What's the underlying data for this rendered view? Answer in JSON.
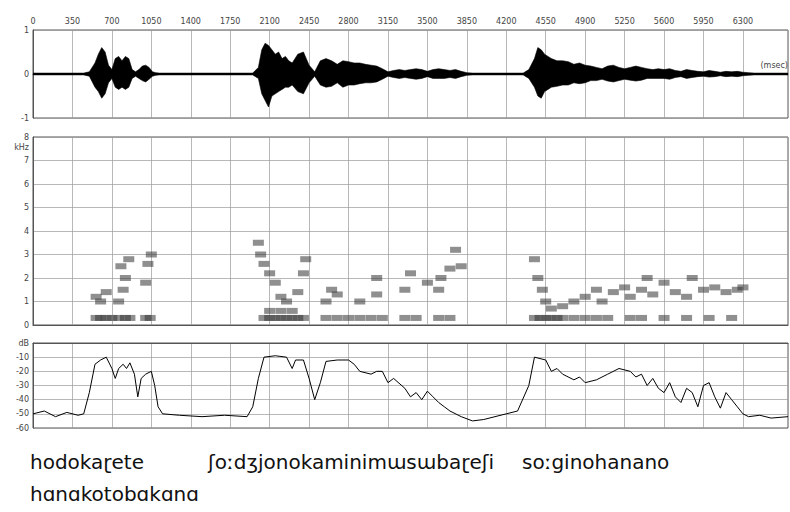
{
  "chart_data": [
    {
      "type": "waveform",
      "color": "#000000",
      "grid": true,
      "xlabel": "(msec)",
      "xlim": [
        0,
        6700
      ],
      "xticks": [
        0,
        350,
        700,
        1050,
        1400,
        1750,
        2100,
        2450,
        2800,
        3150,
        3500,
        3850,
        4200,
        4550,
        4900,
        5250,
        5600,
        5950,
        6300
      ],
      "ylim": [
        -1,
        1
      ],
      "yticks": [
        -1,
        0,
        1
      ],
      "x": [
        0,
        450,
        500,
        550,
        580,
        610,
        640,
        670,
        700,
        730,
        760,
        790,
        820,
        850,
        880,
        910,
        940,
        970,
        1000,
        1030,
        1060,
        1090,
        1120,
        1150,
        1200,
        1950,
        2000,
        2030,
        2060,
        2090,
        2120,
        2150,
        2180,
        2210,
        2240,
        2270,
        2300,
        2350,
        2400,
        2450,
        2500,
        2550,
        2600,
        2650,
        2700,
        2750,
        2800,
        2850,
        2900,
        2950,
        3000,
        3050,
        3100,
        3150,
        3200,
        3250,
        3300,
        3350,
        3400,
        3450,
        3500,
        3550,
        3600,
        3650,
        3700,
        3750,
        3800,
        3850,
        3900,
        3950,
        4350,
        4400,
        4450,
        4480,
        4510,
        4540,
        4570,
        4600,
        4650,
        4700,
        4750,
        4800,
        4850,
        4900,
        4950,
        5000,
        5050,
        5100,
        5150,
        5200,
        5250,
        5300,
        5350,
        5400,
        5450,
        5500,
        5550,
        5600,
        5650,
        5700,
        5750,
        5800,
        5850,
        5900,
        5950,
        6000,
        6050,
        6100,
        6150,
        6200,
        6250,
        6300,
        6350,
        6400,
        6700
      ],
      "upper": [
        0.02,
        0.02,
        0.05,
        0.25,
        0.45,
        0.6,
        0.5,
        0.2,
        0.1,
        0.35,
        0.4,
        0.3,
        0.4,
        0.35,
        0.1,
        0.05,
        0.1,
        0.18,
        0.2,
        0.15,
        0.05,
        0.03,
        0.02,
        0.02,
        0.02,
        0.02,
        0.15,
        0.55,
        0.7,
        0.65,
        0.55,
        0.45,
        0.5,
        0.35,
        0.4,
        0.3,
        0.25,
        0.45,
        0.5,
        0.2,
        0.05,
        0.3,
        0.35,
        0.3,
        0.22,
        0.3,
        0.28,
        0.25,
        0.25,
        0.22,
        0.2,
        0.18,
        0.12,
        0.05,
        0.08,
        0.1,
        0.08,
        0.1,
        0.12,
        0.1,
        0.06,
        0.1,
        0.12,
        0.1,
        0.08,
        0.1,
        0.06,
        0.03,
        0.02,
        0.02,
        0.02,
        0.1,
        0.35,
        0.6,
        0.55,
        0.45,
        0.4,
        0.35,
        0.3,
        0.3,
        0.28,
        0.22,
        0.25,
        0.2,
        0.18,
        0.15,
        0.12,
        0.18,
        0.2,
        0.15,
        0.12,
        0.15,
        0.18,
        0.15,
        0.12,
        0.1,
        0.12,
        0.1,
        0.12,
        0.08,
        0.06,
        0.1,
        0.08,
        0.06,
        0.05,
        0.08,
        0.06,
        0.04,
        0.06,
        0.05,
        0.06,
        0.04,
        0.03,
        0.02,
        0.02
      ],
      "lower": [
        -0.02,
        -0.02,
        -0.05,
        -0.3,
        -0.4,
        -0.55,
        -0.45,
        -0.2,
        -0.1,
        -0.3,
        -0.35,
        -0.3,
        -0.35,
        -0.3,
        -0.1,
        -0.05,
        -0.1,
        -0.15,
        -0.18,
        -0.12,
        -0.05,
        -0.03,
        -0.02,
        -0.02,
        -0.02,
        -0.02,
        -0.1,
        -0.45,
        -0.6,
        -0.75,
        -0.5,
        -0.45,
        -0.4,
        -0.35,
        -0.3,
        -0.3,
        -0.25,
        -0.4,
        -0.45,
        -0.2,
        -0.05,
        -0.25,
        -0.3,
        -0.28,
        -0.2,
        -0.3,
        -0.25,
        -0.25,
        -0.22,
        -0.2,
        -0.2,
        -0.18,
        -0.12,
        -0.05,
        -0.08,
        -0.1,
        -0.08,
        -0.1,
        -0.12,
        -0.1,
        -0.06,
        -0.1,
        -0.1,
        -0.1,
        -0.08,
        -0.1,
        -0.06,
        -0.03,
        -0.02,
        -0.02,
        -0.02,
        -0.1,
        -0.3,
        -0.5,
        -0.55,
        -0.4,
        -0.35,
        -0.3,
        -0.28,
        -0.25,
        -0.25,
        -0.2,
        -0.22,
        -0.2,
        -0.15,
        -0.15,
        -0.12,
        -0.16,
        -0.18,
        -0.15,
        -0.12,
        -0.14,
        -0.16,
        -0.14,
        -0.1,
        -0.1,
        -0.1,
        -0.1,
        -0.12,
        -0.08,
        -0.06,
        -0.1,
        -0.08,
        -0.06,
        -0.05,
        -0.07,
        -0.06,
        -0.04,
        -0.06,
        -0.05,
        -0.06,
        -0.04,
        -0.03,
        -0.02,
        -0.02
      ]
    },
    {
      "type": "spectrogram",
      "color": "#333333",
      "grid": true,
      "tick_labels": "y",
      "xlim": [
        0,
        6700
      ],
      "xticks": [
        0,
        350,
        700,
        1050,
        1400,
        1750,
        2100,
        2450,
        2800,
        3150,
        3500,
        3850,
        4200,
        4550,
        4900,
        5250,
        5600,
        5950,
        6300
      ],
      "ylabel": "kHz",
      "ylim": [
        0,
        8
      ],
      "yticks": [
        0,
        1,
        2,
        3,
        4,
        5,
        6,
        7,
        8
      ],
      "points": [
        [
          560,
          0.3
        ],
        [
          600,
          0.3
        ],
        [
          650,
          0.3
        ],
        [
          700,
          0.3
        ],
        [
          760,
          0.3
        ],
        [
          820,
          0.3
        ],
        [
          860,
          0.3
        ],
        [
          1000,
          0.3
        ],
        [
          1040,
          0.3
        ],
        [
          560,
          1.2
        ],
        [
          600,
          1.0
        ],
        [
          650,
          1.4
        ],
        [
          760,
          1.0
        ],
        [
          800,
          1.5
        ],
        [
          820,
          2.0
        ],
        [
          850,
          2.8
        ],
        [
          780,
          2.5
        ],
        [
          1000,
          1.8
        ],
        [
          1020,
          2.6
        ],
        [
          1050,
          3.0
        ],
        [
          2050,
          0.3
        ],
        [
          2100,
          0.3
        ],
        [
          2150,
          0.3
        ],
        [
          2200,
          0.3
        ],
        [
          2250,
          0.3
        ],
        [
          2300,
          0.3
        ],
        [
          2350,
          0.3
        ],
        [
          2400,
          0.3
        ],
        [
          2600,
          0.3
        ],
        [
          2700,
          0.3
        ],
        [
          2800,
          0.3
        ],
        [
          2900,
          0.3
        ],
        [
          3000,
          0.3
        ],
        [
          3100,
          0.3
        ],
        [
          3300,
          0.3
        ],
        [
          3400,
          0.3
        ],
        [
          3600,
          0.3
        ],
        [
          3700,
          0.3
        ],
        [
          2100,
          0.6
        ],
        [
          2200,
          0.6
        ],
        [
          2300,
          0.6
        ],
        [
          2000,
          3.5
        ],
        [
          2020,
          3.0
        ],
        [
          2050,
          2.6
        ],
        [
          2100,
          2.2
        ],
        [
          2150,
          1.8
        ],
        [
          2200,
          1.2
        ],
        [
          2250,
          1.0
        ],
        [
          2350,
          1.4
        ],
        [
          2400,
          2.2
        ],
        [
          2420,
          2.8
        ],
        [
          2600,
          1.0
        ],
        [
          2650,
          1.5
        ],
        [
          2700,
          1.3
        ],
        [
          2900,
          1.0
        ],
        [
          3050,
          1.3
        ],
        [
          3050,
          2.0
        ],
        [
          3300,
          1.5
        ],
        [
          3350,
          2.2
        ],
        [
          3500,
          1.8
        ],
        [
          3600,
          1.5
        ],
        [
          3620,
          2.0
        ],
        [
          3700,
          2.4
        ],
        [
          3750,
          3.2
        ],
        [
          3800,
          2.5
        ],
        [
          4450,
          0.3
        ],
        [
          4500,
          0.3
        ],
        [
          4550,
          0.3
        ],
        [
          4600,
          0.3
        ],
        [
          4650,
          0.3
        ],
        [
          4700,
          0.3
        ],
        [
          4800,
          0.3
        ],
        [
          4900,
          0.3
        ],
        [
          5000,
          0.3
        ],
        [
          5100,
          0.3
        ],
        [
          5300,
          0.3
        ],
        [
          5400,
          0.3
        ],
        [
          5600,
          0.3
        ],
        [
          5800,
          0.3
        ],
        [
          6000,
          0.3
        ],
        [
          6200,
          0.3
        ],
        [
          4450,
          2.8
        ],
        [
          4480,
          2.0
        ],
        [
          4520,
          1.5
        ],
        [
          4550,
          1.0
        ],
        [
          4600,
          0.7
        ],
        [
          4700,
          0.8
        ],
        [
          4800,
          1.0
        ],
        [
          4900,
          1.2
        ],
        [
          5000,
          1.5
        ],
        [
          5050,
          1.0
        ],
        [
          5150,
          1.4
        ],
        [
          5250,
          1.6
        ],
        [
          5300,
          1.2
        ],
        [
          5400,
          1.5
        ],
        [
          5450,
          2.0
        ],
        [
          5500,
          1.3
        ],
        [
          5600,
          1.8
        ],
        [
          5700,
          1.4
        ],
        [
          5800,
          1.2
        ],
        [
          5850,
          2.0
        ],
        [
          5950,
          1.5
        ],
        [
          6050,
          1.6
        ],
        [
          6150,
          1.4
        ],
        [
          6250,
          1.5
        ],
        [
          6300,
          1.6
        ]
      ]
    },
    {
      "type": "line",
      "color": "#000000",
      "grid": true,
      "tick_labels": "y",
      "xlim": [
        0,
        6700
      ],
      "xticks": [
        0,
        350,
        700,
        1050,
        1400,
        1750,
        2100,
        2450,
        2800,
        3150,
        3500,
        3850,
        4200,
        4550,
        4900,
        5250,
        5600,
        5950,
        6300
      ],
      "ylabel": "dB",
      "ylim": [
        -60,
        0
      ],
      "yticks": [
        -60,
        -50,
        -40,
        -30,
        -20,
        -10
      ],
      "x": [
        0,
        100,
        200,
        300,
        400,
        450,
        500,
        550,
        600,
        650,
        700,
        730,
        760,
        800,
        830,
        860,
        900,
        930,
        960,
        1000,
        1050,
        1080,
        1110,
        1150,
        1300,
        1500,
        1700,
        1900,
        1950,
        2000,
        2050,
        2150,
        2250,
        2300,
        2330,
        2400,
        2450,
        2500,
        2550,
        2600,
        2700,
        2800,
        2850,
        2900,
        3000,
        3050,
        3100,
        3150,
        3200,
        3300,
        3350,
        3400,
        3450,
        3500,
        3550,
        3600,
        3650,
        3700,
        3800,
        3900,
        4000,
        4100,
        4200,
        4300,
        4400,
        4450,
        4550,
        4600,
        4650,
        4700,
        4800,
        4850,
        4900,
        5000,
        5100,
        5200,
        5300,
        5350,
        5400,
        5450,
        5500,
        5550,
        5600,
        5650,
        5700,
        5750,
        5800,
        5850,
        5900,
        5950,
        6000,
        6050,
        6100,
        6150,
        6200,
        6250,
        6300,
        6350,
        6450,
        6550,
        6700
      ],
      "values": [
        -50,
        -48,
        -52,
        -49,
        -51,
        -50,
        -35,
        -15,
        -12,
        -10,
        -18,
        -25,
        -18,
        -15,
        -18,
        -14,
        -22,
        -38,
        -25,
        -22,
        -20,
        -30,
        -45,
        -50,
        -51,
        -52,
        -51,
        -52,
        -45,
        -25,
        -10,
        -9,
        -10,
        -18,
        -12,
        -12,
        -25,
        -40,
        -28,
        -13,
        -12,
        -12,
        -15,
        -20,
        -22,
        -20,
        -20,
        -28,
        -25,
        -32,
        -38,
        -35,
        -40,
        -34,
        -38,
        -42,
        -45,
        -48,
        -52,
        -55,
        -54,
        -52,
        -50,
        -48,
        -30,
        -10,
        -12,
        -20,
        -18,
        -22,
        -26,
        -24,
        -28,
        -26,
        -22,
        -18,
        -20,
        -24,
        -22,
        -30,
        -25,
        -32,
        -35,
        -28,
        -38,
        -42,
        -32,
        -35,
        -45,
        -30,
        -28,
        -38,
        -46,
        -35,
        -40,
        -45,
        -50,
        -52,
        -51,
        -53,
        -52
      ]
    }
  ],
  "transcription": {
    "lines": [
      [
        "hodokaɽete",
        "ʃoːdʒjonokaminimɯsɯbaɽeʃi",
        "soːginohanano"
      ],
      [
        "hɑnɑkotobɑkɑnɑ"
      ]
    ]
  }
}
